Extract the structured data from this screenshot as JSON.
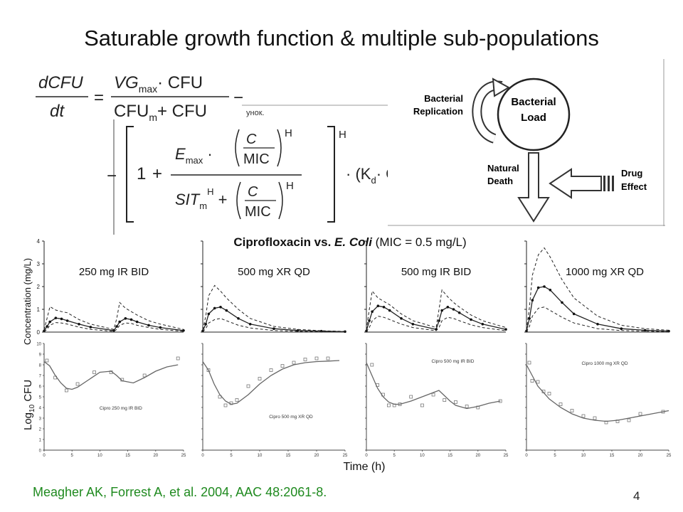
{
  "slide": {
    "title": "Saturable growth function & multiple sub-populations",
    "citation": "Meagher AK, Forrest A, et al. 2004, AAC 48:2061-8.",
    "page_number": "4"
  },
  "equation": {
    "lhs_num": "dCFU",
    "lhs_den": "dt",
    "g_num_a": "VG",
    "g_num_sub": "max",
    "g_num_b": "· CFU",
    "g_den_a": "CFU",
    "g_den_sub": "m",
    "g_den_b": "+ CFU",
    "one": "1",
    "emax": "E",
    "emax_sub": "max",
    "c": "C",
    "mic": "MIC",
    "h": "H",
    "sit": "SIT",
    "sit_sub": "m",
    "kd": "(K",
    "kd_sub": "d",
    "kd_tail": "· CFU)",
    "artifact": "унок."
  },
  "diagram": {
    "center_line1": "Bacterial",
    "center_line2": "Load",
    "replication_line1": "Bacterial",
    "replication_line2": "Replication",
    "death_line1": "Natural",
    "death_line2": "Death",
    "drug_line1": "Drug",
    "drug_line2": "Effect"
  },
  "panels": {
    "heading_a": "Ciprofloxacin vs. ",
    "heading_b": "E. Coli",
    "heading_c": " (MIC = 0.5 mg/L)",
    "conc_ylabel": "Concentration (mg/L)",
    "cfu_ylabel_a": "Log",
    "cfu_ylabel_sub": "10",
    "cfu_ylabel_b": " CFU",
    "xlabel": "Time (h)"
  },
  "chart_data": [
    {
      "type": "line",
      "title": "250 mg IR BID",
      "ylabel": "Concentration (mg/L)",
      "ylim": [
        0,
        4
      ],
      "xlim": [
        0,
        24
      ],
      "y_ticks": [
        "0",
        "1",
        "2",
        "3",
        "4"
      ],
      "series": [
        {
          "x": [
            0,
            0.5,
            1,
            2,
            3,
            4,
            6,
            8,
            12,
            12.5,
            13,
            14,
            15,
            16,
            18,
            20,
            24
          ],
          "y": [
            0.05,
            0.25,
            0.45,
            0.62,
            0.58,
            0.5,
            0.35,
            0.22,
            0.07,
            0.25,
            0.45,
            0.6,
            0.55,
            0.45,
            0.3,
            0.2,
            0.07
          ]
        },
        {
          "x": [
            0,
            0.5,
            1,
            2,
            3,
            4,
            6,
            8,
            12,
            12.5,
            13,
            14,
            15,
            16,
            18,
            20,
            24
          ],
          "y": [
            0.1,
            0.6,
            1.12,
            0.97,
            0.9,
            0.85,
            0.55,
            0.35,
            0.12,
            0.6,
            1.3,
            1.05,
            0.9,
            0.75,
            0.5,
            0.35,
            0.12
          ]
        },
        {
          "x": [
            0,
            0.5,
            1,
            2,
            3,
            4,
            6,
            8,
            12,
            12.5,
            13,
            14,
            15,
            16,
            18,
            20,
            24
          ],
          "y": [
            0.02,
            0.12,
            0.3,
            0.42,
            0.4,
            0.35,
            0.22,
            0.12,
            0.03,
            0.12,
            0.3,
            0.4,
            0.38,
            0.3,
            0.2,
            0.12,
            0.03
          ]
        }
      ]
    },
    {
      "type": "line",
      "title": "500 mg XR QD",
      "ylim": [
        0,
        4
      ],
      "xlim": [
        0,
        24
      ],
      "series": [
        {
          "x": [
            0,
            0.5,
            1,
            2,
            3,
            4,
            6,
            8,
            12,
            16,
            20,
            24
          ],
          "y": [
            0.05,
            0.35,
            0.8,
            1.05,
            1.1,
            0.95,
            0.6,
            0.35,
            0.15,
            0.07,
            0.04,
            0.02
          ]
        },
        {
          "x": [
            0,
            0.5,
            1,
            2,
            3,
            4,
            6,
            8,
            12,
            16,
            20,
            24
          ],
          "y": [
            0.1,
            0.7,
            1.6,
            2.05,
            1.8,
            1.5,
            1.0,
            0.6,
            0.25,
            0.12,
            0.06,
            0.03
          ]
        },
        {
          "x": [
            0,
            0.5,
            1,
            2,
            3,
            4,
            6,
            8,
            12,
            16,
            20,
            24
          ],
          "y": [
            0.02,
            0.15,
            0.4,
            0.55,
            0.6,
            0.5,
            0.3,
            0.18,
            0.07,
            0.03,
            0.02,
            0.01
          ]
        }
      ]
    },
    {
      "type": "line",
      "title": "500 mg IR BID",
      "ylim": [
        0,
        4
      ],
      "xlim": [
        0,
        24
      ],
      "series": [
        {
          "x": [
            0,
            0.5,
            1,
            2,
            3,
            4,
            6,
            8,
            12,
            12.5,
            13,
            14,
            15,
            16,
            18,
            20,
            24
          ],
          "y": [
            0.05,
            0.5,
            0.9,
            1.15,
            1.1,
            0.95,
            0.6,
            0.35,
            0.12,
            0.5,
            0.95,
            1.1,
            1.0,
            0.85,
            0.55,
            0.35,
            0.12
          ]
        },
        {
          "x": [
            0,
            0.5,
            1,
            2,
            3,
            4,
            6,
            8,
            12,
            12.5,
            13,
            14,
            15,
            16,
            18,
            20,
            24
          ],
          "y": [
            0.1,
            1.0,
            1.8,
            1.5,
            1.35,
            1.2,
            0.8,
            0.5,
            0.2,
            1.0,
            1.85,
            1.55,
            1.3,
            1.1,
            0.75,
            0.5,
            0.2
          ]
        },
        {
          "x": [
            0,
            0.5,
            1,
            2,
            3,
            4,
            6,
            8,
            12,
            12.5,
            13,
            14,
            15,
            16,
            18,
            20,
            24
          ],
          "y": [
            0.02,
            0.2,
            0.5,
            0.7,
            0.65,
            0.55,
            0.35,
            0.2,
            0.06,
            0.2,
            0.5,
            0.65,
            0.6,
            0.5,
            0.32,
            0.2,
            0.06
          ]
        }
      ]
    },
    {
      "type": "line",
      "title": "1000 mg XR QD",
      "ylim": [
        0,
        4
      ],
      "xlim": [
        0,
        24
      ],
      "series": [
        {
          "x": [
            0,
            0.5,
            1,
            2,
            3,
            4,
            6,
            8,
            12,
            16,
            20,
            24
          ],
          "y": [
            0.05,
            0.6,
            1.4,
            1.95,
            2.0,
            1.85,
            1.3,
            0.8,
            0.35,
            0.15,
            0.08,
            0.04
          ]
        },
        {
          "x": [
            0,
            0.5,
            1,
            2,
            3,
            4,
            6,
            8,
            12,
            16,
            20,
            24
          ],
          "y": [
            0.1,
            1.1,
            2.5,
            3.4,
            3.7,
            3.3,
            2.3,
            1.5,
            0.7,
            0.3,
            0.15,
            0.08
          ]
        },
        {
          "x": [
            0,
            0.5,
            1,
            2,
            3,
            4,
            6,
            8,
            12,
            16,
            20,
            24
          ],
          "y": [
            0.02,
            0.25,
            0.7,
            1.05,
            1.1,
            0.95,
            0.65,
            0.4,
            0.15,
            0.07,
            0.04,
            0.02
          ]
        }
      ]
    },
    {
      "type": "line",
      "title": "Cipro 250 mg IR BID",
      "ylabel": "Log10 CFU",
      "ylim": [
        0,
        10
      ],
      "xlim": [
        0,
        25
      ],
      "y_ticks": [
        "0",
        "1",
        "2",
        "3",
        "4",
        "5",
        "6",
        "7",
        "8",
        "9",
        "10"
      ],
      "x_ticks": [
        "0",
        "5",
        "10",
        "15",
        "20",
        "25"
      ],
      "series": [
        {
          "x": [
            0,
            1,
            2,
            3,
            4,
            5,
            6,
            8,
            10,
            12,
            13,
            14,
            16,
            18,
            20,
            22,
            24
          ],
          "y": [
            8.3,
            7.9,
            7.0,
            6.3,
            5.8,
            5.7,
            5.9,
            6.6,
            7.3,
            7.4,
            7.0,
            6.5,
            6.3,
            6.8,
            7.4,
            7.8,
            8.0
          ]
        }
      ],
      "observed": {
        "x": [
          0.5,
          2,
          4,
          6,
          9,
          12,
          14,
          18,
          24
        ],
        "y": [
          8.4,
          6.8,
          5.6,
          6.2,
          7.3,
          7.3,
          6.6,
          7.0,
          8.6
        ]
      }
    },
    {
      "type": "line",
      "title": "Cipro 500 mg XR QD",
      "ylim": [
        0,
        10
      ],
      "xlim": [
        0,
        25
      ],
      "x_ticks": [
        "0",
        "5",
        "10",
        "15",
        "20",
        "25"
      ],
      "series": [
        {
          "x": [
            0,
            1,
            2,
            3,
            4,
            5,
            6,
            8,
            10,
            12,
            14,
            16,
            18,
            20,
            22,
            24
          ],
          "y": [
            8.3,
            7.5,
            6.2,
            5.2,
            4.6,
            4.3,
            4.4,
            5.2,
            6.2,
            7.0,
            7.6,
            8.0,
            8.2,
            8.3,
            8.35,
            8.4
          ]
        }
      ],
      "observed": {
        "x": [
          1,
          3,
          4,
          5,
          6,
          8,
          10,
          12,
          14,
          16,
          18,
          20,
          22
        ],
        "y": [
          7.5,
          5.0,
          4.2,
          4.4,
          4.7,
          6.0,
          6.7,
          7.5,
          7.9,
          8.2,
          8.5,
          8.6,
          8.6
        ]
      }
    },
    {
      "type": "line",
      "title": "Cipro 500 mg IR BID",
      "ylim": [
        0,
        10
      ],
      "xlim": [
        0,
        25
      ],
      "x_ticks": [
        "0",
        "5",
        "10",
        "15",
        "20",
        "25"
      ],
      "series": [
        {
          "x": [
            0,
            1,
            2,
            3,
            4,
            5,
            6,
            8,
            10,
            12,
            13,
            14,
            15,
            16,
            18,
            20,
            22,
            24
          ],
          "y": [
            8.2,
            7.0,
            5.8,
            5.0,
            4.5,
            4.3,
            4.3,
            4.6,
            5.0,
            5.4,
            5.6,
            5.1,
            4.6,
            4.2,
            3.9,
            4.1,
            4.4,
            4.6
          ]
        }
      ],
      "observed": {
        "x": [
          1,
          2,
          3,
          4,
          5,
          6,
          8,
          10,
          12,
          14,
          16,
          18,
          20,
          24
        ],
        "y": [
          8.0,
          6.1,
          5.2,
          4.2,
          4.2,
          4.3,
          5.0,
          4.2,
          5.2,
          4.7,
          4.5,
          4.1,
          4.0,
          4.6
        ]
      }
    },
    {
      "type": "line",
      "title": "Cipro 1000 mg XR QD",
      "ylim": [
        0,
        10
      ],
      "xlim": [
        0,
        25
      ],
      "x_ticks": [
        "0",
        "5",
        "10",
        "15",
        "20",
        "25"
      ],
      "series": [
        {
          "x": [
            0,
            1,
            2,
            4,
            6,
            8,
            10,
            12,
            14,
            16,
            18,
            20,
            22,
            24,
            25
          ],
          "y": [
            8.0,
            7.0,
            6.0,
            4.8,
            4.0,
            3.4,
            3.0,
            2.8,
            2.7,
            2.8,
            3.0,
            3.2,
            3.4,
            3.6,
            3.7
          ]
        }
      ],
      "observed": {
        "x": [
          0.5,
          1,
          2,
          3,
          4,
          6,
          8,
          10,
          12,
          14,
          16,
          18,
          20,
          24
        ],
        "y": [
          8.2,
          6.5,
          6.4,
          5.5,
          5.3,
          4.3,
          3.7,
          3.2,
          3.0,
          2.6,
          2.7,
          2.8,
          3.4,
          3.6
        ]
      }
    }
  ]
}
